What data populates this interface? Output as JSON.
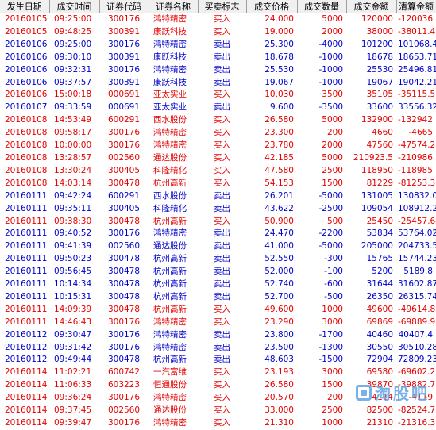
{
  "columns": [
    "发生日期",
    "成交时间",
    "证券代码",
    "证券名称",
    "买卖标志",
    "成交价格",
    "成交数量",
    "成交金额",
    "清算金额"
  ],
  "rows": [
    [
      "20160105",
      "09:25:00",
      "300176",
      "鸿特精密",
      "买入",
      "24.000",
      "5000",
      "120000",
      "-120036",
      "buy"
    ],
    [
      "20160105",
      "09:48:25",
      "300391",
      "康跃科技",
      "买入",
      "19.000",
      "2000",
      "38000",
      "-38011.4",
      "buy"
    ],
    [
      "20160106",
      "09:25:00",
      "300176",
      "鸿特精密",
      "卖出",
      "25.300",
      "-4000",
      "101200",
      "101068.44",
      "sell"
    ],
    [
      "20160106",
      "09:30:10",
      "300391",
      "康跃科技",
      "卖出",
      "18.678",
      "-1000",
      "18678",
      "18653.71",
      "sell"
    ],
    [
      "20160106",
      "09:32:31",
      "300176",
      "鸿特精密",
      "卖出",
      "25.530",
      "-1000",
      "25530",
      "25496.81",
      "sell"
    ],
    [
      "20160106",
      "09:37:57",
      "300391",
      "康跃科技",
      "卖出",
      "19.067",
      "-1000",
      "19067",
      "19042.21",
      "sell"
    ],
    [
      "20160106",
      "15:00:18",
      "000691",
      "亚太实业",
      "买入",
      "10.030",
      "3500",
      "35105",
      "-35115.53",
      "buy"
    ],
    [
      "20160107",
      "09:33:59",
      "000691",
      "亚太实业",
      "卖出",
      "9.600",
      "-3500",
      "33600",
      "33556.32",
      "sell"
    ],
    [
      "20160108",
      "14:53:49",
      "600291",
      "西水股份",
      "买入",
      "26.580",
      "5000",
      "132900",
      "-132942.5",
      "buy"
    ],
    [
      "20160108",
      "09:58:17",
      "300176",
      "鸿特精密",
      "买入",
      "23.300",
      "200",
      "4660",
      "-4665",
      "buy"
    ],
    [
      "20160108",
      "10:00:00",
      "300176",
      "鸿特精密",
      "买入",
      "23.780",
      "2000",
      "47560",
      "-47574.27",
      "buy"
    ],
    [
      "20160108",
      "13:28:57",
      "002560",
      "通达股份",
      "买入",
      "42.185",
      "5000",
      "210923.5",
      "-210986.8",
      "buy"
    ],
    [
      "20160108",
      "13:30:24",
      "300405",
      "科隆精化",
      "买入",
      "47.580",
      "2500",
      "118950",
      "-118985.7",
      "buy"
    ],
    [
      "20160108",
      "14:03:14",
      "300478",
      "杭州高新",
      "买入",
      "54.153",
      "1500",
      "81229",
      "-81253.37",
      "buy"
    ],
    [
      "20160111",
      "09:42:24",
      "600291",
      "西水股份",
      "卖出",
      "26.201",
      "-5000",
      "131005",
      "130832.08",
      "sell"
    ],
    [
      "20160111",
      "09:35:11",
      "300405",
      "科隆精化",
      "卖出",
      "43.622",
      "-2500",
      "109054",
      "108912.23",
      "sell"
    ],
    [
      "20160111",
      "09:38:30",
      "300478",
      "杭州高新",
      "买入",
      "50.900",
      "500",
      "25450",
      "-25457.64",
      "buy"
    ],
    [
      "20160111",
      "09:40:52",
      "300176",
      "鸿特精密",
      "卖出",
      "24.470",
      "-2200",
      "53834",
      "53764.02",
      "sell"
    ],
    [
      "20160111",
      "09:41:39",
      "002560",
      "通达股份",
      "卖出",
      "41.000",
      "-5000",
      "205000",
      "204733.5",
      "sell"
    ],
    [
      "20160111",
      "09:50:23",
      "300478",
      "杭州高新",
      "卖出",
      "52.550",
      "-300",
      "15765",
      "15744.23",
      "sell"
    ],
    [
      "20160111",
      "09:56:45",
      "300478",
      "杭州高新",
      "卖出",
      "52.000",
      "-100",
      "5200",
      "5189.8",
      "sell"
    ],
    [
      "20160111",
      "10:14:34",
      "300478",
      "杭州高新",
      "卖出",
      "52.740",
      "-600",
      "31644",
      "31602.87",
      "sell"
    ],
    [
      "20160111",
      "10:15:31",
      "300478",
      "杭州高新",
      "卖出",
      "52.700",
      "-500",
      "26350",
      "26315.74",
      "sell"
    ],
    [
      "20160111",
      "14:09:39",
      "300478",
      "杭州高新",
      "买入",
      "49.600",
      "1000",
      "49600",
      "-49614.88",
      "buy"
    ],
    [
      "20160111",
      "14:46:43",
      "300176",
      "鸿特精密",
      "买入",
      "23.290",
      "3000",
      "69869",
      "-69889.96",
      "buy"
    ],
    [
      "20160112",
      "09:30:47",
      "300176",
      "鸿特精密",
      "卖出",
      "23.800",
      "-1700",
      "40460",
      "40407.4",
      "sell"
    ],
    [
      "20160112",
      "09:31:42",
      "300176",
      "鸿特精密",
      "卖出",
      "23.500",
      "-1300",
      "30550",
      "30510.28",
      "sell"
    ],
    [
      "20160112",
      "09:49:44",
      "300478",
      "杭州高新",
      "卖出",
      "48.603",
      "-1500",
      "72904",
      "72809.23",
      "sell"
    ],
    [
      "20160114",
      "11:02:21",
      "600742",
      "一汽富维",
      "买入",
      "23.193",
      "3000",
      "69580",
      "-69602.26",
      "buy"
    ],
    [
      "20160114",
      "11:06:33",
      "603223",
      "恒通股份",
      "买入",
      "26.580",
      "1500",
      "39870",
      "-39882.76",
      "buy"
    ],
    [
      "20160114",
      "09:36:24",
      "300176",
      "鸿特精密",
      "买入",
      "20.570",
      "200",
      "4114",
      "-4119",
      "buy"
    ],
    [
      "20160114",
      "09:37:45",
      "002560",
      "通达股份",
      "买入",
      "33.000",
      "2500",
      "82500",
      "-82524.75",
      "buy"
    ],
    [
      "20160114",
      "09:39:47",
      "300176",
      "鸿特精密",
      "买入",
      "21.310",
      "1000",
      "21310",
      "-21316.39",
      "buy"
    ]
  ],
  "colors": {
    "buy": "#e60000",
    "sell": "#0000cc",
    "header_bg": "#f0f0f0"
  },
  "watermark": {
    "text": "淘股吧",
    "icon": "taoguba-logo-icon"
  }
}
